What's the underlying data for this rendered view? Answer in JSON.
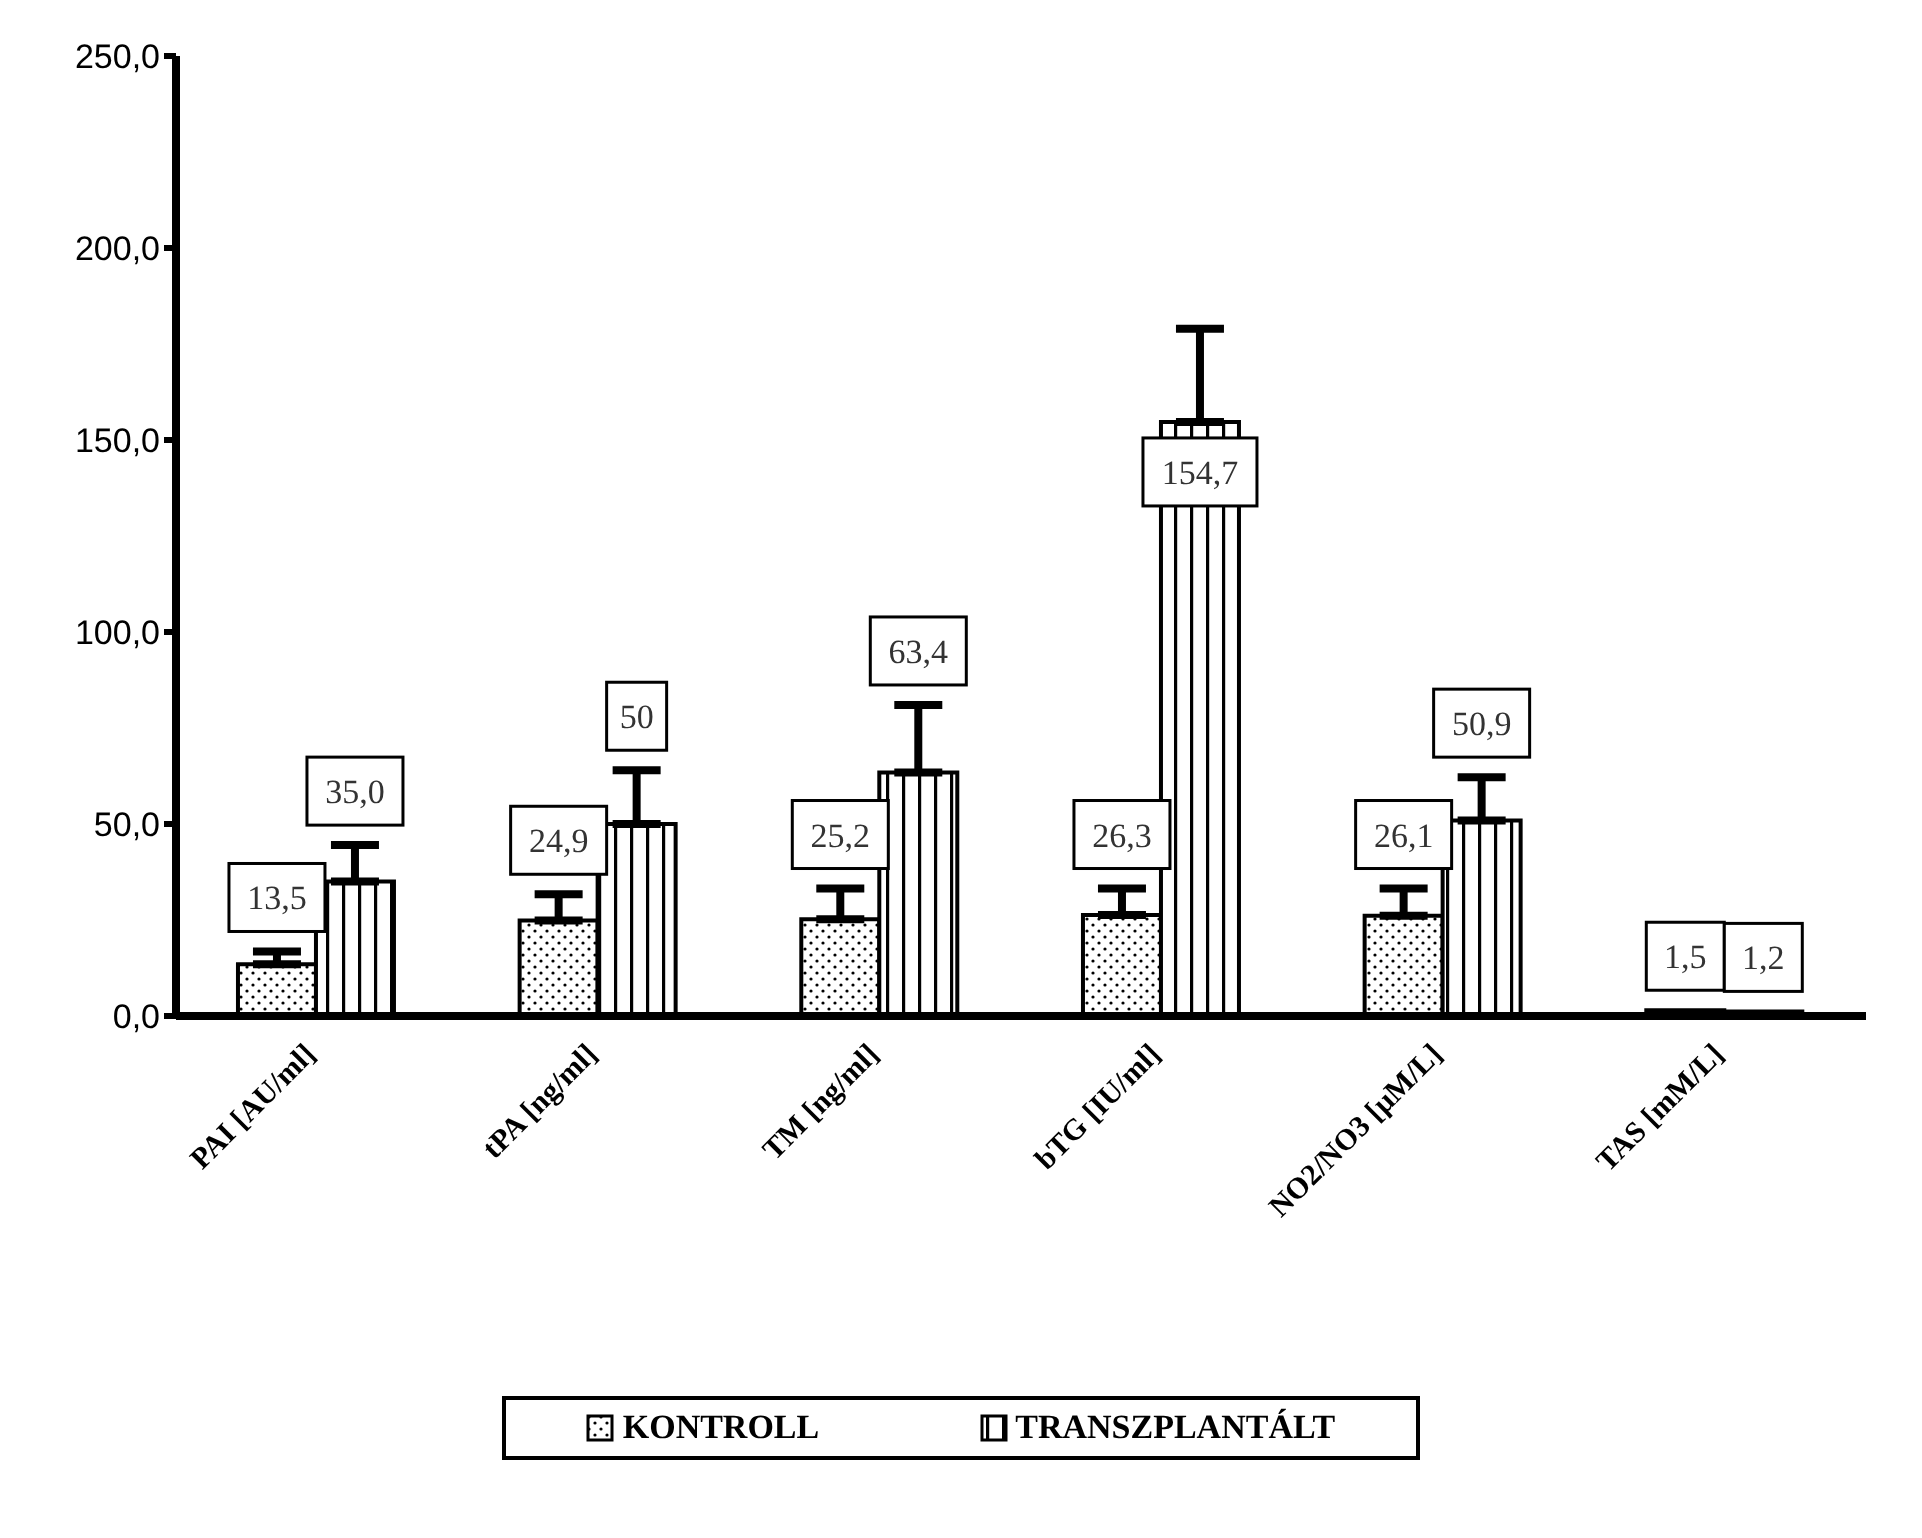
{
  "chart_data": {
    "type": "bar",
    "categories": [
      "PAI [AU/ml]",
      "tPA [ng/ml]",
      "TM [ng/ml]",
      "bTG [IU/ml]",
      "NO2/NO3 [µM/L]",
      "TAS [mM/L]"
    ],
    "series": [
      {
        "name": "KONTROLL",
        "color": "#000000",
        "values": [
          13.5,
          24.9,
          25.2,
          26.3,
          26.1,
          1.5
        ],
        "errors": [
          [
            13.5,
            16.8
          ],
          [
            24.9,
            31.7
          ],
          [
            25.2,
            33.2
          ],
          [
            26.3,
            33.2
          ],
          [
            26.1,
            33.2
          ],
          null
        ],
        "value_labels": [
          "13,5",
          "24,9",
          "25,2",
          "26,3",
          "26,1",
          "1,5"
        ]
      },
      {
        "name": "TRANSZPLANTÁLT",
        "color": "#000000",
        "values": [
          35.0,
          50,
          63.4,
          154.7,
          50.9,
          1.2
        ],
        "errors": [
          [
            35.0,
            44.5
          ],
          [
            50,
            64
          ],
          [
            63.4,
            81
          ],
          [
            154.7,
            179
          ],
          [
            50.9,
            62.2
          ],
          null
        ],
        "value_labels": [
          "35,0",
          "50",
          "63,4",
          "154,7",
          "50,9",
          "1,2"
        ]
      }
    ],
    "ylim": [
      0,
      250
    ],
    "yticks": [
      {
        "value": 0,
        "label": "0,0"
      },
      {
        "value": 50,
        "label": "50,0"
      },
      {
        "value": 100,
        "label": "100,0"
      },
      {
        "value": 150,
        "label": "150,0"
      },
      {
        "value": 200,
        "label": "200,0"
      },
      {
        "value": 250,
        "label": "250,0"
      }
    ],
    "grid": false,
    "legend": "bottom"
  }
}
